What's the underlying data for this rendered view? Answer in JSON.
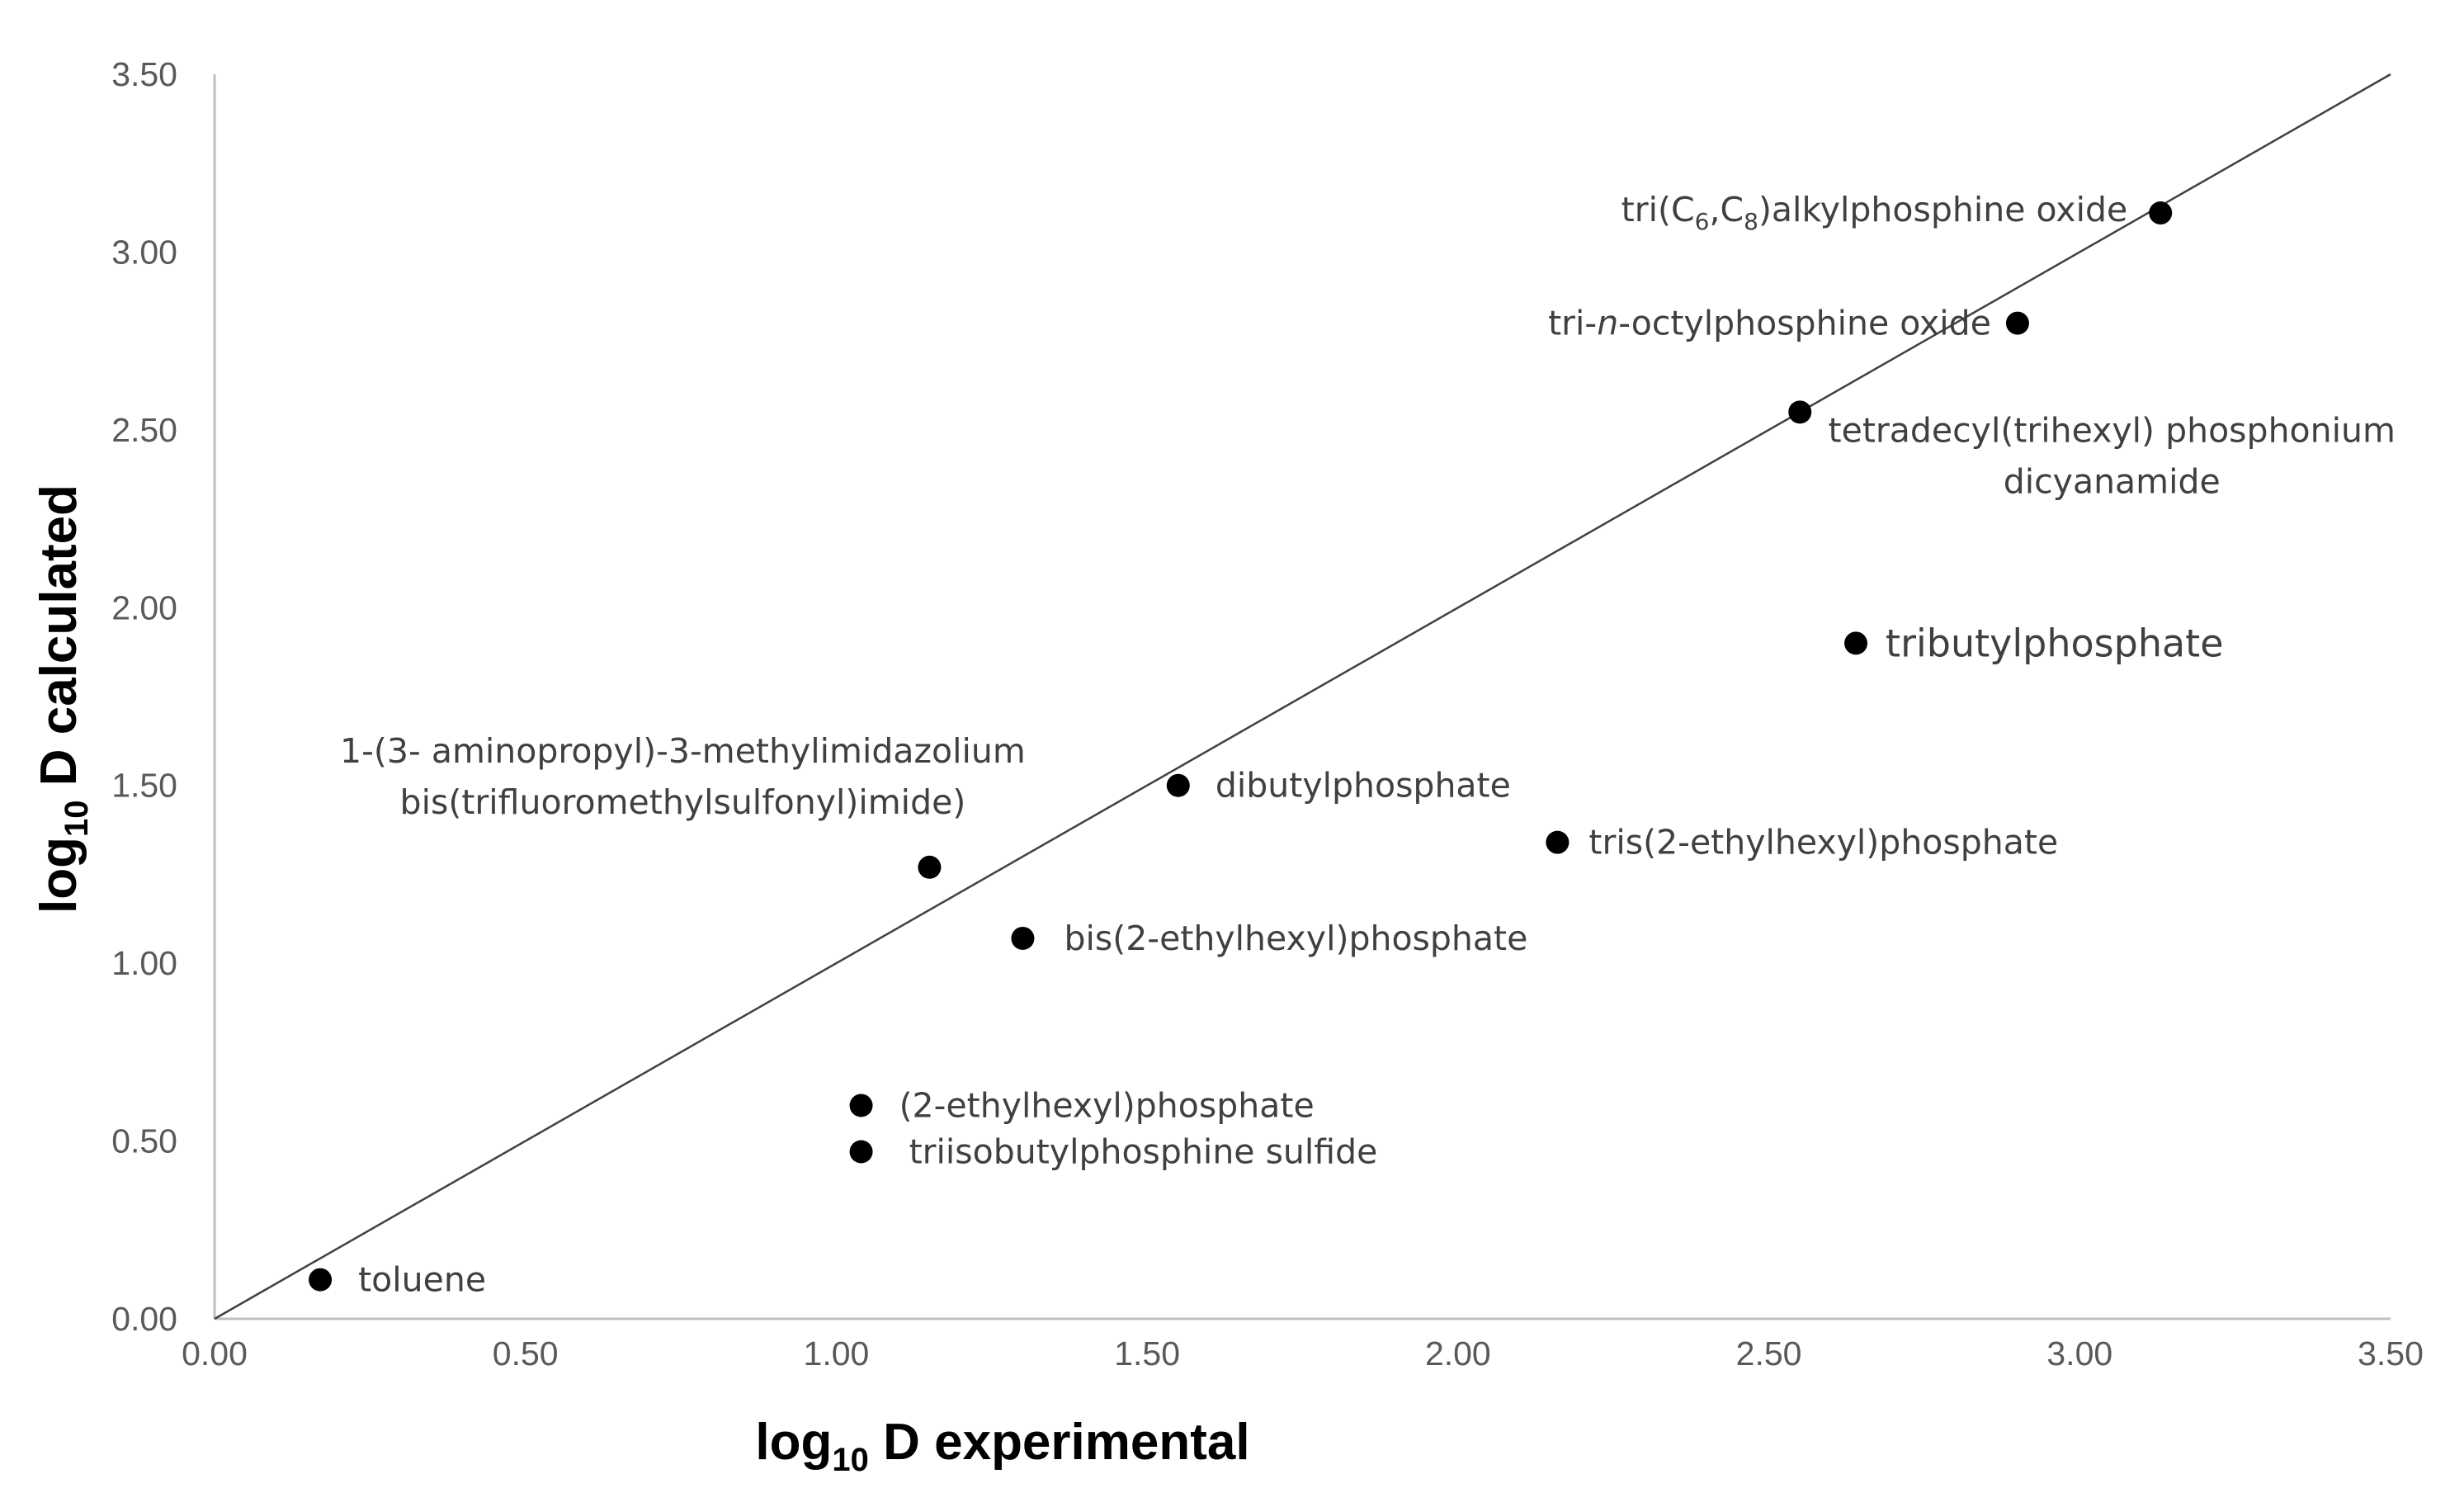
{
  "chart_data": {
    "type": "scatter",
    "xlabel": {
      "pre": "log",
      "sub": "10",
      "post": " D experimental"
    },
    "ylabel": {
      "pre": "log",
      "sub": "10",
      "post": " D calculated"
    },
    "xlim": [
      0,
      3.5
    ],
    "ylim": [
      0,
      3.5
    ],
    "xticks": [
      "0.00",
      "0.50",
      "1.00",
      "1.50",
      "2.00",
      "2.50",
      "3.00",
      "3.50"
    ],
    "yticks": [
      "0.00",
      "0.50",
      "1.00",
      "1.50",
      "2.00",
      "2.50",
      "3.00",
      "3.50"
    ],
    "reference_line": {
      "type": "y=x",
      "x": [
        0,
        3.5
      ],
      "y": [
        0,
        3.5
      ]
    },
    "marker_color": "#000000",
    "line_color": "#404040",
    "axis_color": "#bfbfbf",
    "points": [
      {
        "x": 0.17,
        "y": 0.11,
        "label": "toluene"
      },
      {
        "x": 1.04,
        "y": 0.47,
        "label": "triisobutylphosphine sulfide"
      },
      {
        "x": 1.04,
        "y": 0.6,
        "label": "(2-ethylhexyl)phosphate"
      },
      {
        "x": 1.3,
        "y": 1.07,
        "label": "bis(2-ethylhexyl)phosphate"
      },
      {
        "x": 1.15,
        "y": 1.27,
        "label_lines": [
          "1-(3- aminopropyl)-3-methylimidazolium",
          "bis(trifluoromethylsulfonyl)imide)"
        ]
      },
      {
        "x": 1.55,
        "y": 1.5,
        "label": "dibutylphosphate"
      },
      {
        "x": 2.16,
        "y": 1.34,
        "label": "tris(2-ethylhexyl)phosphate"
      },
      {
        "x": 2.64,
        "y": 1.9,
        "label": "tributylphosphate"
      },
      {
        "x": 2.55,
        "y": 2.55,
        "label_lines": [
          "tetradecyl(trihexyl) phosphonium",
          "dicyanamide"
        ]
      },
      {
        "x": 2.9,
        "y": 2.8,
        "label_parts": [
          {
            "t": "tri-"
          },
          {
            "t": "n",
            "style": "italic"
          },
          {
            "t": "-octylphosphine oxide"
          }
        ]
      },
      {
        "x": 3.13,
        "y": 3.11,
        "label_parts": [
          {
            "t": "tri(C"
          },
          {
            "t": "6",
            "style": "sub"
          },
          {
            "t": ",C"
          },
          {
            "t": "8",
            "style": "sub"
          },
          {
            "t": ")alkylphosphine oxide"
          }
        ]
      }
    ]
  }
}
